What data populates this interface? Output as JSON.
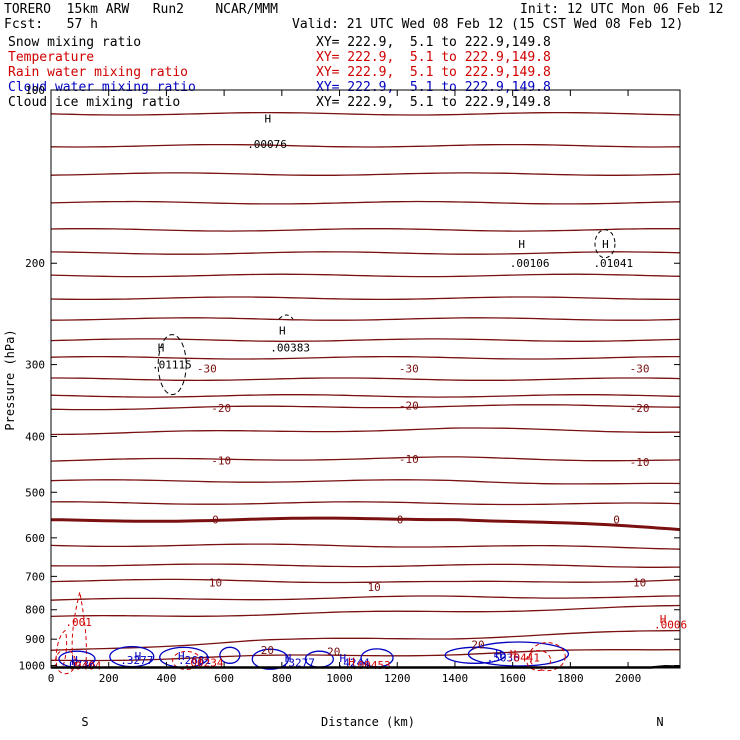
{
  "header": {
    "model_line": "TORERO  15km ARW   Run2    NCAR/MMM",
    "init_line": "Init: 12 UTC Mon 06 Feb 12",
    "fcst_line": "Fcst:   57 h",
    "valid_line": "Valid: 21 UTC Wed 08 Feb 12 (15 CST Wed 08 Feb 12)"
  },
  "legend": [
    {
      "field": "Snow mixing ratio",
      "xy": "",
      "color": "#000000"
    },
    {
      "field": "Temperature",
      "xy": "XY= 222.9,  5.1 to 222.9,149.8",
      "color": "#d00000"
    },
    {
      "field": "Rain water mixing ratio",
      "xy": "XY= 222.9,  5.1 to 222.9,149.8",
      "color": "#d00000"
    },
    {
      "field": "Cloud water mixing ratio",
      "xy": "XY= 222.9,  5.1 to 222.9,149.8",
      "color": "#0000c0"
    },
    {
      "field": "Cloud ice mixing ratio",
      "xy": "XY= 222.9,  5.1 to 222.9,149.8",
      "color": "#000000"
    }
  ],
  "legend_top_xy": "XY= 222.9,  5.1 to 222.9,149.8",
  "chart_data": {
    "type": "line",
    "subtype": "vertical cross-section contour plot",
    "xlabel": "Distance (km)",
    "ylabel": "Pressure (hPa)",
    "xlim": [
      0,
      2180
    ],
    "ylim": [
      1010,
      100
    ],
    "y_scale": "log",
    "x_ticks": [
      0,
      200,
      400,
      600,
      800,
      1000,
      1200,
      1400,
      1600,
      1800,
      2000
    ],
    "y_ticks": [
      100,
      200,
      300,
      400,
      500,
      600,
      700,
      800,
      900,
      1000
    ],
    "endpoint_labels": {
      "left": "S",
      "right": "N"
    },
    "colors": {
      "temperature": "#7a1010",
      "zero_isotherm": "#7a1010",
      "rain": "#d00000",
      "cloud_water": "#0000c0",
      "ice": "#000000"
    },
    "temperature_isotherms_hpa": [
      {
        "p": [
          110,
          110,
          110,
          110
        ]
      },
      {
        "p": [
          125,
          125,
          125,
          125
        ]
      },
      {
        "p": [
          140,
          140,
          140,
          140
        ]
      },
      {
        "p": [
          157,
          157,
          157,
          157
        ]
      },
      {
        "p": [
          175,
          175,
          175,
          175
        ]
      },
      {
        "p": [
          192,
          192,
          192,
          192
        ]
      },
      {
        "p": [
          210,
          210,
          210,
          210
        ]
      },
      {
        "p": [
          230,
          230,
          230,
          230
        ]
      },
      {
        "p": [
          250,
          250,
          250,
          250
        ]
      },
      {
        "p": [
          272,
          272,
          272,
          272
        ]
      },
      {
        "p": [
          292,
          292,
          292,
          292
        ],
        "label": "-30"
      },
      {
        "p": [
          318,
          318,
          318,
          318
        ]
      },
      {
        "p": [
          340,
          340,
          340,
          340
        ]
      },
      {
        "p": [
          358,
          356,
          354,
          354
        ],
        "label": "-20"
      },
      {
        "p": [
          395,
          392,
          388,
          392
        ]
      },
      {
        "p": [
          440,
          438,
          436,
          440
        ],
        "label": "-10"
      },
      {
        "p": [
          478,
          478,
          478,
          485
        ]
      },
      {
        "p": [
          522,
          522,
          522,
          525
        ]
      },
      {
        "p": [
          560,
          558,
          555,
          580
        ],
        "label": "0",
        "bold": true
      },
      {
        "p": [
          618,
          618,
          620,
          625
        ]
      },
      {
        "p": [
          668,
          670,
          670,
          672
        ]
      },
      {
        "p": [
          712,
          712,
          718,
          710
        ],
        "label": "10"
      },
      {
        "p": [
          770,
          765,
          760,
          760
        ]
      },
      {
        "p": [
          825,
          815,
          805,
          790
        ]
      },
      {
        "p": [
          945,
          905,
          895,
          870
        ],
        "label": "20"
      },
      {
        "p": [
          980,
          965,
          955,
          935
        ]
      }
    ],
    "isotherm_labels": [
      {
        "text": "-30",
        "x": 540,
        "p": 305
      },
      {
        "text": "-30",
        "x": 1240,
        "p": 305
      },
      {
        "text": "-30",
        "x": 2040,
        "p": 305
      },
      {
        "text": "-20",
        "x": 590,
        "p": 357
      },
      {
        "text": "-20",
        "x": 1240,
        "p": 353
      },
      {
        "text": "-20",
        "x": 2040,
        "p": 357
      },
      {
        "text": "-10",
        "x": 590,
        "p": 440
      },
      {
        "text": "-10",
        "x": 1240,
        "p": 438
      },
      {
        "text": "-10",
        "x": 2040,
        "p": 443
      },
      {
        "text": "0",
        "x": 570,
        "p": 558
      },
      {
        "text": "0",
        "x": 1210,
        "p": 558
      },
      {
        "text": "0",
        "x": 1960,
        "p": 558
      },
      {
        "text": "10",
        "x": 570,
        "p": 718
      },
      {
        "text": "10",
        "x": 1120,
        "p": 730
      },
      {
        "text": "10",
        "x": 2040,
        "p": 718
      },
      {
        "text": "20",
        "x": 750,
        "p": 940
      },
      {
        "text": "20",
        "x": 980,
        "p": 945
      },
      {
        "text": "20",
        "x": 1480,
        "p": 920
      }
    ],
    "maxima_labels": [
      {
        "text": "H",
        "x": 740,
        "p": 112,
        "color": "#000000"
      },
      {
        "text": ".00076",
        "x": 680,
        "p": 124,
        "color": "#000000"
      },
      {
        "text": "H",
        "x": 1620,
        "p": 185,
        "color": "#000000"
      },
      {
        "text": ".00106",
        "x": 1590,
        "p": 200,
        "color": "#000000"
      },
      {
        "text": "H",
        "x": 1910,
        "p": 185,
        "color": "#000000"
      },
      {
        "text": ".01041",
        "x": 1880,
        "p": 200,
        "color": "#000000"
      },
      {
        "text": "H",
        "x": 790,
        "p": 262,
        "color": "#000000"
      },
      {
        "text": ".00383",
        "x": 760,
        "p": 280,
        "color": "#000000"
      },
      {
        "text": "H",
        "x": 370,
        "p": 280,
        "color": "#000000"
      },
      {
        "text": ".01115",
        "x": 350,
        "p": 300,
        "color": "#000000"
      },
      {
        "text": ".001",
        "x": 50,
        "p": 840,
        "color": "#d00000"
      },
      {
        "text": "H",
        "x": 2110,
        "p": 830,
        "color": "#d00000"
      },
      {
        "text": ".0006",
        "x": 2090,
        "p": 848,
        "color": "#d00000"
      },
      {
        "text": "H",
        "x": 290,
        "p": 962,
        "color": "#0000c0"
      },
      {
        "text": ".3277",
        "x": 240,
        "p": 978,
        "color": "#0000c0"
      },
      {
        "text": "H",
        "x": 440,
        "p": 962,
        "color": "#0000c0"
      },
      {
        "text": ".2681",
        "x": 440,
        "p": 978,
        "color": "#0000c0"
      },
      {
        "text": ".00234",
        "x": 460,
        "p": 988,
        "color": "#d00000"
      },
      {
        "text": "H",
        "x": 810,
        "p": 970,
        "color": "#0000c0"
      },
      {
        "text": ".3277",
        "x": 800,
        "p": 988,
        "color": "#0000c0"
      },
      {
        "text": "H",
        "x": 1000,
        "p": 970,
        "color": "#0000c0"
      },
      {
        "text": ".4244",
        "x": 990,
        "p": 988,
        "color": "#0000c0"
      },
      {
        "text": "H",
        "x": 1030,
        "p": 985,
        "color": "#d00000"
      },
      {
        "text": ".00453",
        "x": 1040,
        "p": 998,
        "color": "#d00000"
      },
      {
        "text": "H",
        "x": 1540,
        "p": 955,
        "color": "#0000c0"
      },
      {
        "text": ".5036",
        "x": 1510,
        "p": 968,
        "color": "#0000c0"
      },
      {
        "text": "H",
        "x": 1590,
        "p": 955,
        "color": "#d00000"
      },
      {
        "text": ".0441",
        "x": 1580,
        "p": 968,
        "color": "#d00000"
      },
      {
        "text": "H",
        "x": 70,
        "p": 978,
        "color": "#0000c0"
      },
      {
        "text": ".0736",
        "x": 40,
        "p": 995,
        "color": "#0000c0"
      },
      {
        "text": ".0404",
        "x": 60,
        "p": 1000,
        "color": "#d00000"
      }
    ]
  }
}
